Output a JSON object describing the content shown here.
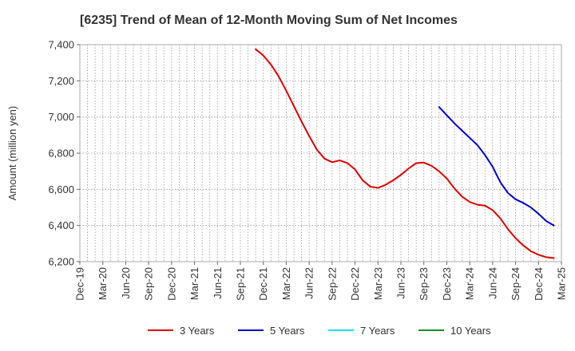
{
  "chart_data": {
    "type": "line",
    "title": "[6235]  Trend of Mean of 12-Month Moving Sum of Net Incomes",
    "xlabel": "",
    "ylabel": "Amount (million yen)",
    "ylim": [
      6200,
      7400
    ],
    "y_ticks": [
      6200,
      6400,
      6600,
      6800,
      7000,
      7200,
      7400
    ],
    "y_tick_labels": [
      "6,200",
      "6,400",
      "6,600",
      "6,800",
      "7,000",
      "7,200",
      "7,400"
    ],
    "x_ticks": [
      "Dec-19",
      "Mar-20",
      "Jun-20",
      "Sep-20",
      "Dec-20",
      "Mar-21",
      "Jun-21",
      "Sep-21",
      "Dec-21",
      "Mar-22",
      "Jun-22",
      "Sep-22",
      "Dec-22",
      "Mar-23",
      "Jun-23",
      "Sep-23",
      "Dec-23",
      "Mar-24",
      "Jun-24",
      "Sep-24",
      "Dec-24",
      "Mar-25"
    ],
    "grid": true,
    "legend_position": "bottom",
    "series": [
      {
        "name": "3 Years",
        "color": "#dd0000",
        "start": "Nov-21",
        "values": [
          7375,
          7340,
          7290,
          7225,
          7145,
          7060,
          6975,
          6895,
          6820,
          6770,
          6750,
          6760,
          6745,
          6710,
          6650,
          6615,
          6608,
          6625,
          6650,
          6680,
          6715,
          6745,
          6748,
          6730,
          6700,
          6660,
          6605,
          6560,
          6530,
          6515,
          6510,
          6485,
          6440,
          6380,
          6330,
          6290,
          6258,
          6238,
          6225,
          6220
        ]
      },
      {
        "name": "5 Years",
        "color": "#0000cc",
        "start": "Nov-23",
        "values": [
          7055,
          7010,
          6965,
          6925,
          6885,
          6845,
          6790,
          6725,
          6640,
          6580,
          6545,
          6525,
          6500,
          6465,
          6425,
          6400
        ]
      },
      {
        "name": "7 Years",
        "color": "#00e5ee",
        "start": "",
        "values": []
      },
      {
        "name": "10 Years",
        "color": "#228b22",
        "start": "",
        "values": []
      }
    ]
  }
}
